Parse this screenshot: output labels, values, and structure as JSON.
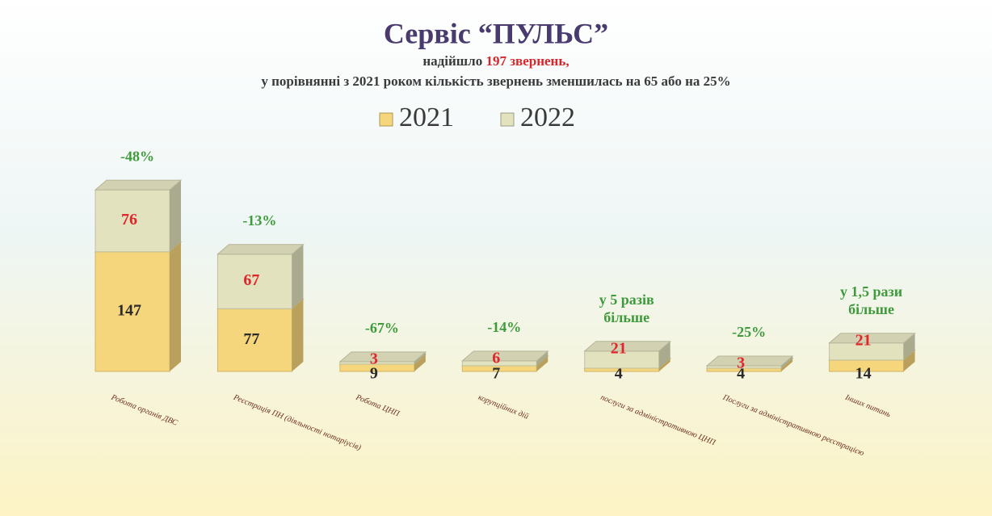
{
  "chart_data": {
    "type": "bar3d-stacked",
    "title": "Сервіс “ПУЛЬС”",
    "subtitle": [
      "надійшло ",
      "197 звернень,"
    ],
    "subtitle2": "у порівнянні з 2021 роком кількість звернень зменшилась на 65 або на 25%",
    "categories": [
      "Робота органів ДВС",
      "Реєстрація ПН (діяльності нотаріусів)",
      "Робота ЦНП",
      "корупційних дій",
      "послуги за адміністративною ЦНП",
      "Послуги за адміністративною реєстрацією",
      "Інших питань"
    ],
    "series": [
      {
        "name": "2021",
        "color": "#f6d67c",
        "values": [
          147,
          77,
          9,
          7,
          4,
          4,
          14
        ]
      },
      {
        "name": "2022",
        "color": "#e2e2bf",
        "values": [
          76,
          67,
          3,
          6,
          21,
          3,
          21
        ]
      }
    ],
    "annotations": [
      [
        "-48%"
      ],
      [
        "-13%"
      ],
      [
        "-67%"
      ],
      [
        "-14%"
      ],
      [
        "у 5 разів",
        "більше"
      ],
      [
        "-25%"
      ],
      [
        "у 1,5 рази",
        "більше"
      ]
    ],
    "ylim": [
      0,
      240
    ]
  }
}
